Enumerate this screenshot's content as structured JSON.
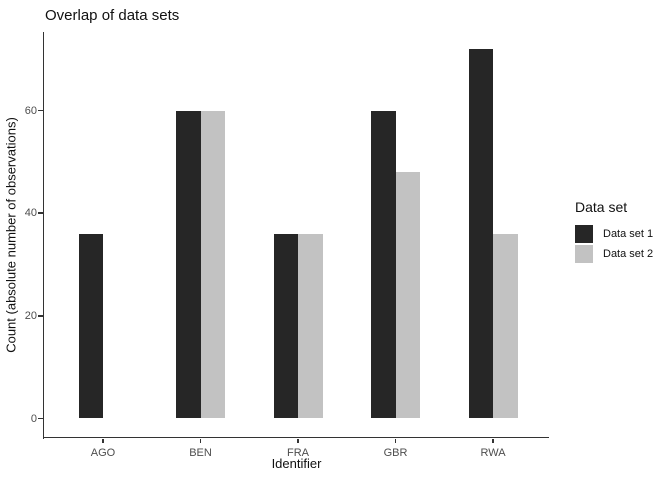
{
  "chart_data": {
    "type": "bar",
    "bar_grouping": "dodge",
    "title": "Overlap of data sets",
    "xlabel": "Identifier",
    "ylabel": "Count (absolute number of observations)",
    "categories": [
      "AGO",
      "BEN",
      "FRA",
      "GBR",
      "RWA"
    ],
    "series": [
      {
        "name": "Data set 1",
        "color": "#262626",
        "values": [
          36,
          60,
          36,
          60,
          72
        ]
      },
      {
        "name": "Data set 2",
        "color": "#c2c2c2",
        "values": [
          null,
          60,
          36,
          48,
          36
        ]
      }
    ],
    "yticks": [
      0,
      20,
      40,
      60
    ],
    "ytick_labels": [
      "0",
      "20",
      "40",
      "60"
    ],
    "ylim": [
      0,
      75
    ],
    "grid": false,
    "legend": {
      "title": "Data set",
      "position": "right",
      "entries": [
        "Data set 1",
        "Data set 2"
      ]
    },
    "colors": {
      "axis": "#333333",
      "tick_text": "#4d4d4d",
      "text": "#111111",
      "background": "#ffffff"
    }
  }
}
